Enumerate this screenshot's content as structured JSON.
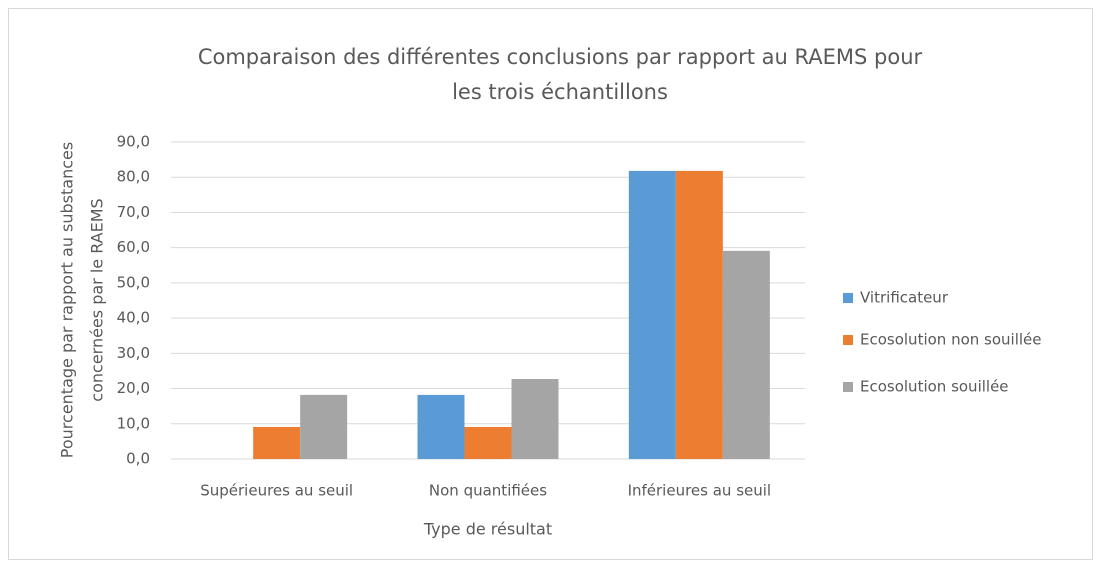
{
  "chart_data": {
    "type": "bar",
    "title": [
      "Comparaison des différentes conclusions par rapport au RAEMS pour",
      "les trois échantillons"
    ],
    "x_label": "Type de résultat",
    "y_label": [
      "Pourcentage par rapport au substances",
      "concernées par le RAEMS"
    ],
    "categories": [
      "Supérieures au seuil",
      "Non quantifiées",
      "Inférieures au seuil"
    ],
    "series": [
      {
        "name": "Vitrificateur",
        "color": "#5b9bd5",
        "values": [
          0,
          18.2,
          81.8
        ]
      },
      {
        "name": "Ecosolution non souillée",
        "color": "#ed7d31",
        "values": [
          9.1,
          9.1,
          81.8
        ]
      },
      {
        "name": "Ecosolution souillée",
        "color": "#a5a5a5",
        "values": [
          18.2,
          22.7,
          59.1
        ]
      }
    ],
    "ylim": [
      0,
      90
    ],
    "yticks": [
      {
        "value": 0,
        "label": "0,0"
      },
      {
        "value": 10,
        "label": "10,0"
      },
      {
        "value": 20,
        "label": "20,0"
      },
      {
        "value": 30,
        "label": "30,0"
      },
      {
        "value": 40,
        "label": "40,0"
      },
      {
        "value": 50,
        "label": "50,0"
      },
      {
        "value": 60,
        "label": "60,0"
      },
      {
        "value": 70,
        "label": "70,0"
      },
      {
        "value": 80,
        "label": "80,0"
      },
      {
        "value": 90,
        "label": "90,0"
      }
    ],
    "grid": true,
    "legend": "right"
  }
}
